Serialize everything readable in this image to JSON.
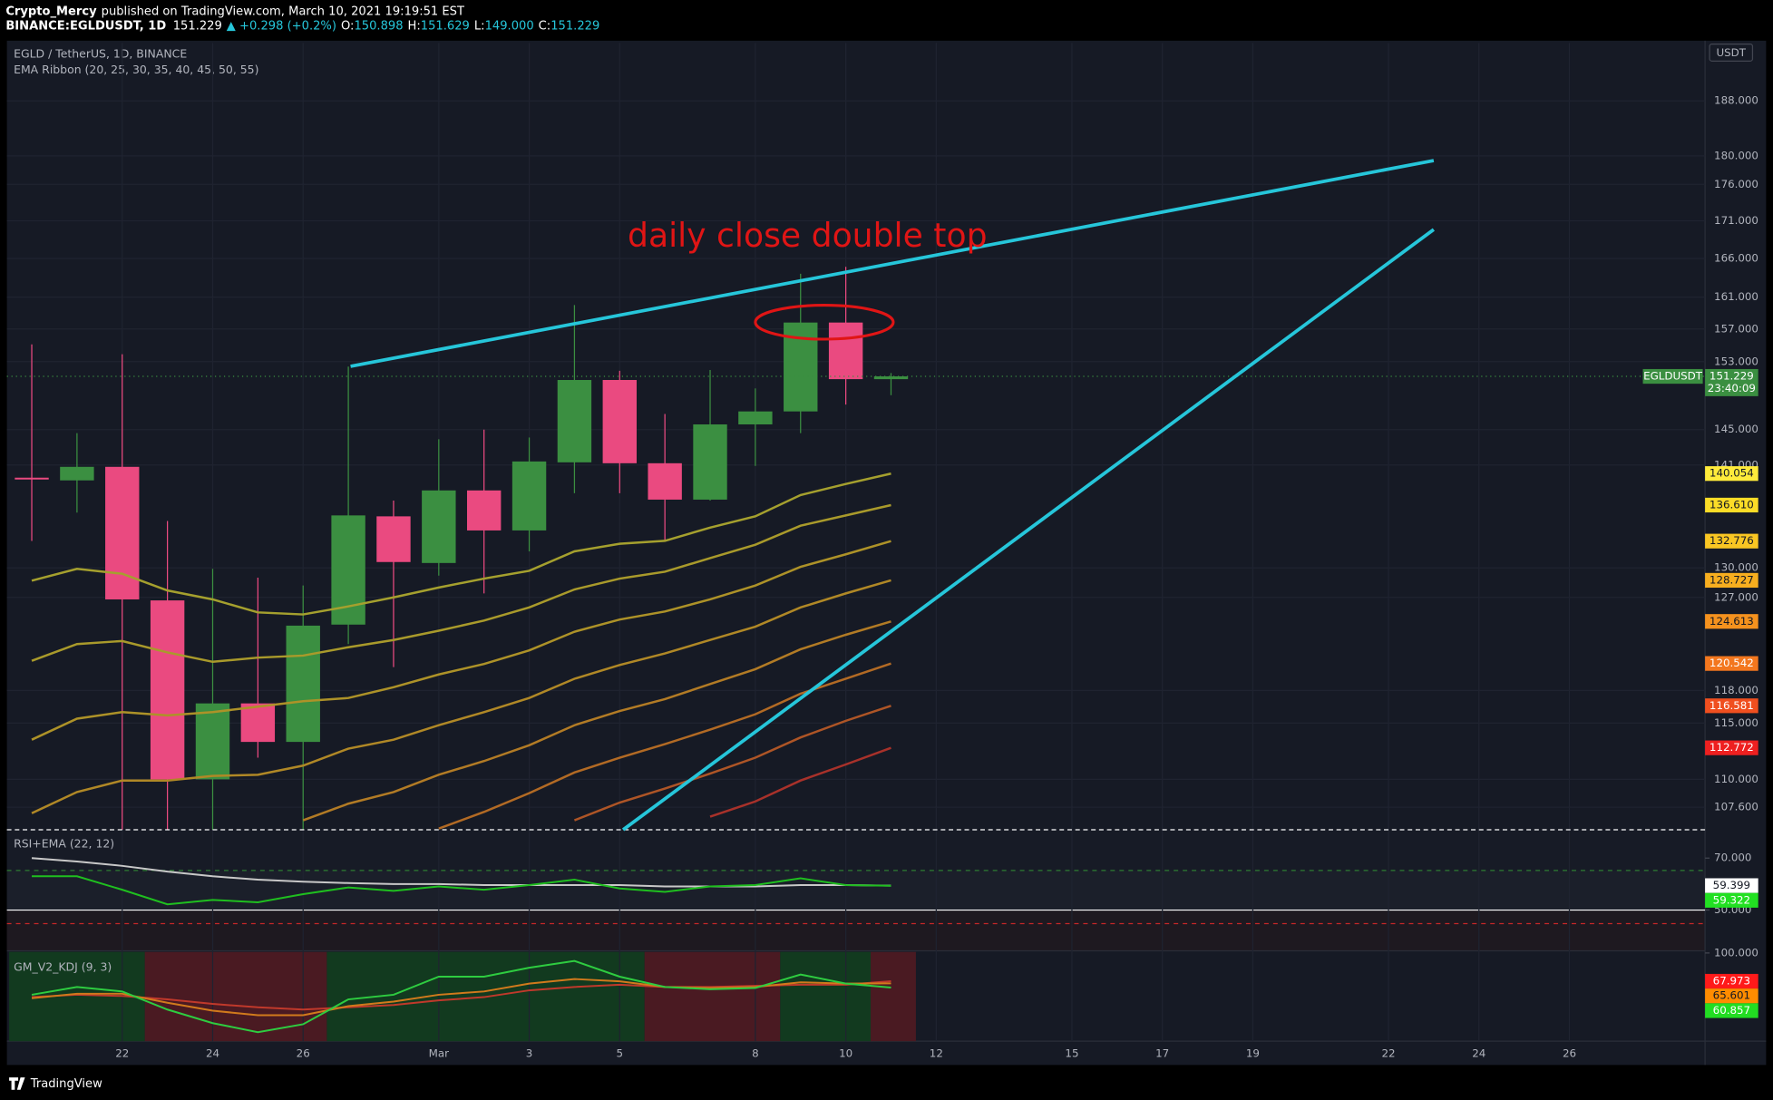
{
  "header": {
    "author": "Crypto_Mercy",
    "published": "published on TradingView.com, March 10, 2021 19:19:51 EST",
    "symbol": "BINANCE:EGLDUSDT, 1D",
    "price": "151.229",
    "change": "▲ +0.298 (+0.2%)",
    "ohlc": [
      {
        "label": "O:",
        "value": "150.898"
      },
      {
        "label": "H:",
        "value": "151.629"
      },
      {
        "label": "L:",
        "value": "149.000"
      },
      {
        "label": "C:",
        "value": "151.229"
      }
    ]
  },
  "chart_data": [
    {
      "type": "candlestick",
      "title": "EGLD / TetherUS, 1D, BINANCE",
      "subtitle": "EMA Ribbon (20, 25, 30, 35, 40, 45, 50, 55)",
      "annotation": "daily close double top",
      "currency": "USDT",
      "symbol_tag": "EGLDUSDT",
      "countdown": "23:40:09",
      "x": [
        "Feb 20",
        "Feb 21",
        "Feb 22",
        "Feb 23",
        "Feb 24",
        "Feb 25",
        "Feb 26",
        "Feb 27",
        "Feb 28",
        "Mar 1",
        "Mar 2",
        "Mar 3",
        "Mar 4",
        "Mar 5",
        "Mar 6",
        "Mar 7",
        "Mar 8",
        "Mar 9",
        "Mar 10",
        "Mar 11"
      ],
      "open": [
        139.6,
        139.3,
        140.8,
        126.7,
        110.0,
        116.8,
        113.3,
        124.3,
        135.4,
        130.5,
        138.2,
        133.9,
        141.3,
        150.8,
        141.2,
        137.2,
        145.6,
        147.1,
        157.8,
        150.898
      ],
      "high": [
        155.1,
        144.6,
        153.9,
        134.9,
        129.9,
        129.0,
        128.2,
        152.4,
        137.1,
        143.9,
        145.0,
        144.1,
        160.0,
        151.9,
        146.8,
        152.0,
        149.8,
        164.0,
        164.9,
        151.629
      ],
      "low": [
        132.8,
        135.8,
        104.5,
        104.5,
        104.5,
        111.9,
        104.5,
        122.4,
        120.2,
        129.2,
        127.4,
        131.7,
        137.9,
        137.9,
        132.8,
        137.1,
        140.9,
        144.6,
        147.9,
        149.0
      ],
      "close": [
        139.4,
        140.8,
        126.8,
        110.0,
        116.8,
        113.3,
        124.2,
        135.5,
        130.6,
        138.2,
        133.9,
        141.4,
        150.8,
        141.2,
        137.2,
        145.6,
        147.1,
        157.8,
        150.9,
        151.229
      ],
      "up_color": "#3b8f41",
      "down_color": "#ea4a80",
      "log_scale": true,
      "grid": true,
      "ylim": [
        105.7,
        196.8
      ],
      "yticks": [
        {
          "value": 188,
          "label": "188.000"
        },
        {
          "value": 180,
          "label": "180.000"
        },
        {
          "value": 176,
          "label": "176.000"
        },
        {
          "value": 171,
          "label": "171.000"
        },
        {
          "value": 166,
          "label": "166.000"
        },
        {
          "value": 161,
          "label": "161.000"
        },
        {
          "value": 157,
          "label": "157.000"
        },
        {
          "value": 153,
          "label": "153.000"
        },
        {
          "value": 145,
          "label": "145.000"
        },
        {
          "value": 141,
          "label": "141.000"
        },
        {
          "value": 130,
          "label": "130.000"
        },
        {
          "value": 127,
          "label": "127.000"
        },
        {
          "value": 118,
          "label": "118.000"
        },
        {
          "value": 115,
          "label": "115.000"
        },
        {
          "value": 110,
          "label": "110.000"
        },
        {
          "value": 107.6,
          "label": "107.600"
        }
      ],
      "xlim": [
        "Feb 20",
        "Mar 29"
      ],
      "xticks": [
        {
          "value": "Feb 22",
          "label": "22"
        },
        {
          "value": "Feb 24",
          "label": "24"
        },
        {
          "value": "Feb 26",
          "label": "26"
        },
        {
          "value": "Mar 1",
          "label": "Mar"
        },
        {
          "value": "Mar 3",
          "label": "3"
        },
        {
          "value": "Mar 5",
          "label": "5"
        },
        {
          "value": "Mar 8",
          "label": "8"
        },
        {
          "value": "Mar 10",
          "label": "10"
        },
        {
          "value": "Mar 12",
          "label": "12"
        },
        {
          "value": "Mar 15",
          "label": "15"
        },
        {
          "value": "Mar 17",
          "label": "17"
        },
        {
          "value": "Mar 19",
          "label": "19"
        },
        {
          "value": "Mar 22",
          "label": "22"
        },
        {
          "value": "Mar 24",
          "label": "24"
        },
        {
          "value": "Mar 26",
          "label": "26"
        }
      ],
      "series": [
        {
          "color": "#a5a02e",
          "label_color": "#ffeb3b",
          "last_label": "140.054",
          "values": [
            128.7,
            129.9,
            129.4,
            127.7,
            126.8,
            125.5,
            125.3,
            126.1,
            127.0,
            128.0,
            128.9,
            129.7,
            131.7,
            132.5,
            132.8,
            134.2,
            135.4,
            137.7,
            138.9,
            140.054
          ]
        },
        {
          "color": "#a99a2b",
          "label_color": "#fbdc27",
          "last_label": "136.610",
          "values": [
            120.8,
            122.4,
            122.7,
            121.6,
            120.7,
            121.1,
            121.3,
            122.1,
            122.8,
            123.7,
            124.7,
            126.0,
            127.8,
            128.9,
            129.6,
            131.0,
            132.4,
            134.4,
            135.5,
            136.61
          ]
        },
        {
          "color": "#ad9228",
          "label_color": "#f9c623",
          "last_label": "132.776",
          "values": [
            113.5,
            115.4,
            116.0,
            115.7,
            116.0,
            116.5,
            117.0,
            117.3,
            118.3,
            119.5,
            120.5,
            121.8,
            123.6,
            124.8,
            125.6,
            126.8,
            128.2,
            130.1,
            131.4,
            132.776
          ]
        },
        {
          "color": "#b08826",
          "label_color": "#f7ae1f",
          "last_label": "128.727",
          "values": [
            107.1,
            108.9,
            109.9,
            109.9,
            110.3,
            110.4,
            111.2,
            112.7,
            113.5,
            114.8,
            116.0,
            117.3,
            119.1,
            120.4,
            121.5,
            122.8,
            124.1,
            126.0,
            127.4,
            128.727
          ]
        },
        {
          "color": "#b27b25",
          "label_color": "#f5921e",
          "last_label": "124.613",
          "values": [
            null,
            null,
            null,
            null,
            null,
            null,
            106.5,
            107.9,
            108.9,
            110.4,
            111.6,
            113.0,
            114.8,
            116.1,
            117.2,
            118.6,
            120.0,
            121.9,
            123.3,
            124.613
          ]
        },
        {
          "color": "#b26a24",
          "label_color": "#f3771e",
          "last_label": "120.542",
          "values": [
            null,
            null,
            null,
            null,
            null,
            null,
            null,
            null,
            null,
            105.8,
            107.2,
            108.8,
            110.6,
            111.9,
            113.1,
            114.4,
            115.8,
            117.7,
            119.1,
            120.542
          ]
        },
        {
          "color": "#ae5526",
          "label_color": "#f04f1f",
          "last_label": "116.581",
          "values": [
            null,
            null,
            null,
            null,
            null,
            null,
            null,
            null,
            null,
            null,
            null,
            null,
            106.5,
            108.0,
            109.2,
            110.5,
            111.9,
            113.7,
            115.2,
            116.581
          ]
        },
        {
          "color": "#a8312a",
          "label_color": "#ee2020",
          "last_label": "112.772",
          "values": [
            null,
            null,
            null,
            null,
            null,
            null,
            null,
            null,
            null,
            null,
            null,
            null,
            null,
            null,
            null,
            106.8,
            108.1,
            109.9,
            111.3,
            112.772
          ]
        }
      ]
    },
    {
      "type": "line",
      "title": "RSI+EMA (22, 12)",
      "ylim": [
        34.3,
        80.9
      ],
      "yticks": [
        {
          "value": 70,
          "label": "70.000"
        },
        {
          "value": 50,
          "label": "50.000"
        }
      ],
      "series": [
        {
          "color": "#c8c8c8",
          "label_color": "#ffffff",
          "last_label": "59.399",
          "values": [
            70.0,
            68.7,
            67.0,
            64.8,
            63.0,
            61.7,
            60.9,
            60.4,
            60.0,
            60.0,
            59.6,
            59.6,
            59.6,
            59.6,
            59.1,
            59.1,
            59.1,
            59.6,
            59.6,
            59.399
          ]
        },
        {
          "color": "#1fbf1f",
          "label_color": "#22e022",
          "last_label": "59.322",
          "values": [
            63.0,
            63.0,
            57.8,
            52.2,
            53.9,
            53.0,
            56.1,
            58.7,
            57.4,
            59.1,
            57.8,
            59.6,
            61.7,
            58.3,
            57.0,
            59.1,
            59.6,
            62.2,
            59.6,
            59.322
          ]
        }
      ]
    },
    {
      "type": "line",
      "title": "GM_V2_KDJ (9, 3)",
      "ylim": [
        0,
        102.5
      ],
      "yticks": [
        {
          "value": 100,
          "label": "100.000"
        }
      ],
      "series": [
        {
          "color": "#c0392b",
          "label_color": "#ff1a1a",
          "last_label": "67.973",
          "values": [
            50.0,
            52.6,
            51.3,
            47.4,
            42.3,
            38.5,
            35.9,
            38.5,
            41.0,
            46.2,
            50.0,
            57.7,
            61.5,
            64.1,
            61.5,
            61.5,
            62.8,
            64.1,
            64.1,
            67.973
          ]
        },
        {
          "color": "#d17a1c",
          "label_color": "#ff8c00",
          "last_label": "65.601",
          "values": [
            48.7,
            53.8,
            53.8,
            43.6,
            34.6,
            29.5,
            29.5,
            39.7,
            44.9,
            52.6,
            56.4,
            65.4,
            70.5,
            67.9,
            61.5,
            60.3,
            61.5,
            66.7,
            65.4,
            65.601
          ]
        },
        {
          "color": "#2ecc40",
          "label_color": "#22dd22",
          "last_label": "60.857",
          "values": [
            52.6,
            61.5,
            56.4,
            35.9,
            20.5,
            10.3,
            19.2,
            47.4,
            52.6,
            73.1,
            73.1,
            83.3,
            91.0,
            73.1,
            61.5,
            59.0,
            60.3,
            75.6,
            65.4,
            60.857
          ]
        }
      ]
    }
  ],
  "footer": {
    "brand": "TradingView"
  }
}
